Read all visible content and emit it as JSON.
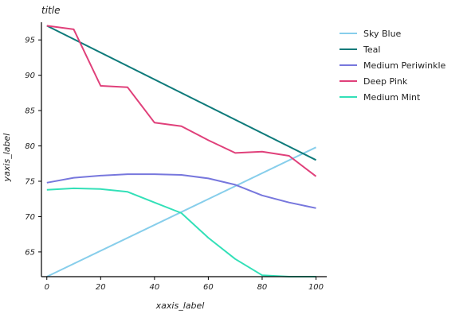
{
  "chart_data": {
    "type": "line",
    "title": "title",
    "xlabel": "xaxis_label",
    "ylabel": "yaxis_label",
    "xlim": [
      -2,
      104
    ],
    "ylim": [
      61.5,
      97.5
    ],
    "xticks": [
      0,
      20,
      40,
      60,
      80,
      100
    ],
    "yticks": [
      65,
      70,
      75,
      80,
      85,
      90,
      95
    ],
    "grid": false,
    "legend_position": "right",
    "series": [
      {
        "name": "Sky Blue",
        "color": "#87CEEB",
        "x": [
          0,
          100
        ],
        "y": [
          61.5,
          79.8
        ]
      },
      {
        "name": "Teal",
        "color": "#0E7A7A",
        "x": [
          0,
          100
        ],
        "y": [
          97.0,
          78.0
        ]
      },
      {
        "name": "Medium Periwinkle",
        "color": "#7777DD",
        "x": [
          0,
          10,
          20,
          30,
          40,
          50,
          60,
          70,
          80,
          90,
          100
        ],
        "y": [
          74.8,
          75.5,
          75.8,
          76.0,
          76.0,
          75.9,
          75.4,
          74.5,
          73.0,
          72.0,
          71.2
        ]
      },
      {
        "name": "Deep Pink",
        "color": "#E0407A",
        "x": [
          0,
          10,
          20,
          30,
          40,
          50,
          60,
          70,
          80,
          90,
          100
        ],
        "y": [
          97.0,
          96.5,
          88.5,
          88.3,
          83.3,
          82.8,
          80.8,
          79.0,
          79.2,
          78.6,
          75.7
        ]
      },
      {
        "name": "Medium Mint",
        "color": "#33E0B8",
        "x": [
          0,
          10,
          20,
          30,
          40,
          50,
          60,
          70,
          80,
          90,
          100
        ],
        "y": [
          73.8,
          74.0,
          73.9,
          73.5,
          72.0,
          70.5,
          67.0,
          64.0,
          61.7,
          61.5,
          61.5
        ]
      }
    ]
  }
}
